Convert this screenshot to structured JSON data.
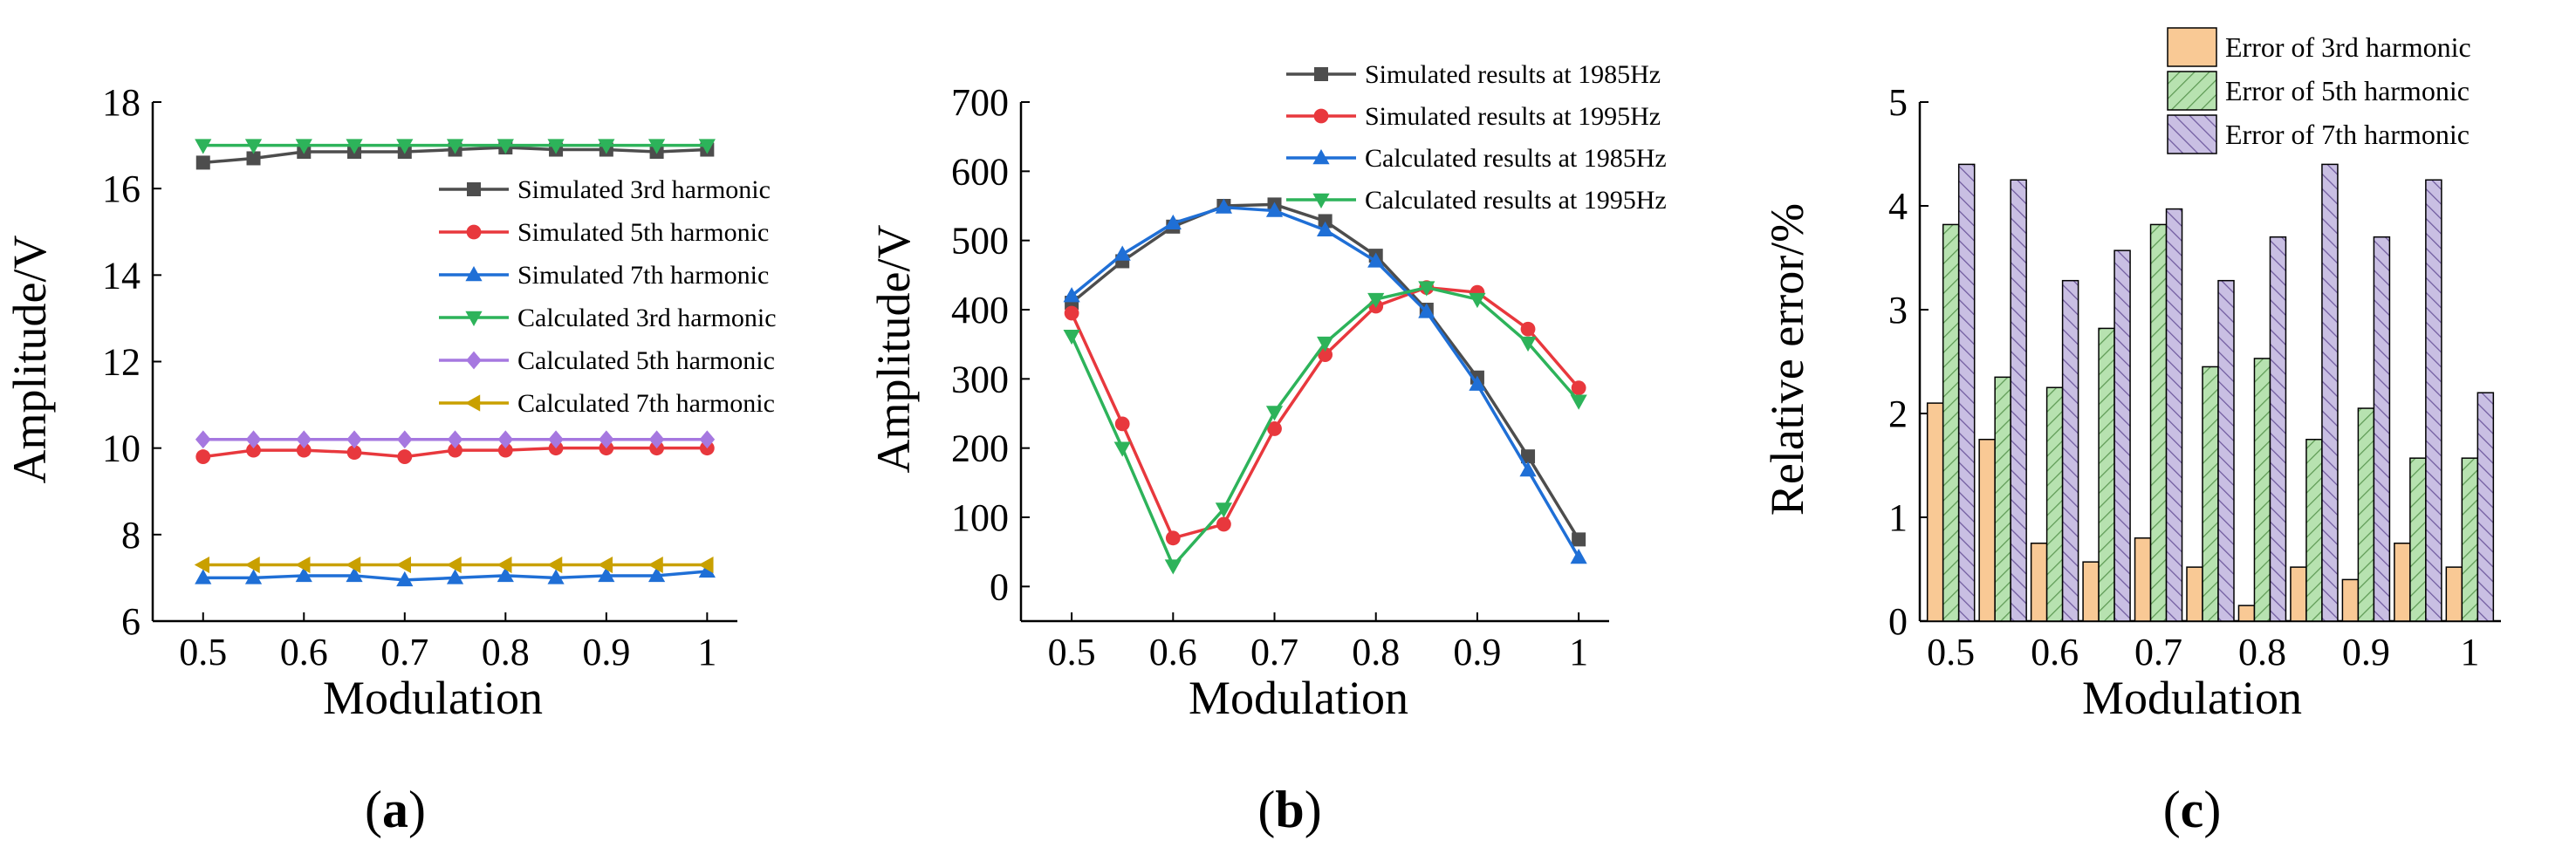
{
  "chart_data": [
    {
      "panel": "a",
      "type": "line",
      "xlabel": "Modulation",
      "ylabel": "Amplitude/V",
      "xlim": [
        0.45,
        1.03
      ],
      "ylim": [
        6,
        18
      ],
      "x_ticks": [
        "0.5",
        "0.6",
        "0.7",
        "0.8",
        "0.9",
        "1"
      ],
      "y_ticks": [
        "6",
        "8",
        "10",
        "12",
        "14",
        "16",
        "18"
      ],
      "x": [
        0.5,
        0.55,
        0.6,
        0.65,
        0.7,
        0.75,
        0.8,
        0.85,
        0.9,
        0.95,
        1.0
      ],
      "legend_position": "right",
      "series": [
        {
          "name": "Simulated 3rd harmonic",
          "color": "#4d4d4d",
          "marker": "square",
          "values": [
            16.6,
            16.7,
            16.85,
            16.85,
            16.85,
            16.9,
            16.95,
            16.9,
            16.9,
            16.85,
            16.9
          ]
        },
        {
          "name": "Simulated 5th harmonic",
          "color": "#e8383d",
          "marker": "circle",
          "values": [
            9.8,
            9.95,
            9.95,
            9.9,
            9.8,
            9.95,
            9.95,
            10.0,
            10.0,
            10.0,
            10.0
          ]
        },
        {
          "name": "Simulated 7th harmonic",
          "color": "#1f6fd6",
          "marker": "triangle-up",
          "values": [
            7.0,
            7.0,
            7.05,
            7.05,
            6.95,
            7.0,
            7.05,
            7.0,
            7.05,
            7.05,
            7.15
          ]
        },
        {
          "name": "Calculated 3rd harmonic",
          "color": "#2db35a",
          "marker": "triangle-down",
          "values": [
            17.0,
            17.0,
            17.0,
            17.0,
            17.0,
            17.0,
            17.0,
            17.0,
            17.0,
            17.0,
            17.0
          ]
        },
        {
          "name": "Calculated 5th harmonic",
          "color": "#a678e0",
          "marker": "diamond",
          "values": [
            10.2,
            10.2,
            10.2,
            10.2,
            10.2,
            10.2,
            10.2,
            10.2,
            10.2,
            10.2,
            10.2
          ]
        },
        {
          "name": "Calculated 7th harmonic",
          "color": "#c9a000",
          "marker": "triangle-left",
          "values": [
            7.3,
            7.3,
            7.3,
            7.3,
            7.3,
            7.3,
            7.3,
            7.3,
            7.3,
            7.3,
            7.3
          ]
        }
      ],
      "label_prefix": "(",
      "label_letter": "a",
      "label_suffix": ")"
    },
    {
      "panel": "b",
      "type": "line",
      "xlabel": "Modulation",
      "ylabel": "Amplitude/V",
      "xlim": [
        0.45,
        1.03
      ],
      "ylim": [
        -50,
        700
      ],
      "x_ticks": [
        "0.5",
        "0.6",
        "0.7",
        "0.8",
        "0.9",
        "1"
      ],
      "y_ticks": [
        "0",
        "100",
        "200",
        "300",
        "400",
        "500",
        "600",
        "700"
      ],
      "x": [
        0.5,
        0.55,
        0.6,
        0.65,
        0.7,
        0.75,
        0.8,
        0.85,
        0.9,
        0.95,
        1.0
      ],
      "legend_position": "top-right",
      "series": [
        {
          "name": "Simulated results at 1985Hz",
          "color": "#4d4d4d",
          "marker": "square",
          "values": [
            410,
            470,
            520,
            550,
            552,
            528,
            478,
            400,
            302,
            188,
            68
          ]
        },
        {
          "name": "Simulated results at 1995Hz",
          "color": "#e8383d",
          "marker": "circle",
          "values": [
            395,
            235,
            70,
            90,
            228,
            335,
            405,
            432,
            425,
            372,
            287
          ]
        },
        {
          "name": "Calculated results at 1985Hz",
          "color": "#1f6fd6",
          "marker": "triangle-up",
          "values": [
            420,
            480,
            525,
            548,
            543,
            515,
            470,
            397,
            292,
            168,
            42
          ]
        },
        {
          "name": "Calculated results at 1995Hz",
          "color": "#2db35a",
          "marker": "triangle-down",
          "values": [
            362,
            200,
            30,
            112,
            252,
            352,
            415,
            432,
            415,
            352,
            268
          ]
        }
      ],
      "label_prefix": "(",
      "label_letter": "b",
      "label_suffix": ")"
    },
    {
      "panel": "c",
      "type": "bar",
      "xlabel": "Modulation",
      "ylabel": "Relative error/%",
      "xlim": [
        0.47,
        1.03
      ],
      "ylim": [
        0,
        5
      ],
      "x_ticks": [
        "0.5",
        "0.6",
        "0.7",
        "0.8",
        "0.9",
        "1"
      ],
      "y_ticks": [
        "0",
        "1",
        "2",
        "3",
        "4",
        "5"
      ],
      "categories": [
        0.5,
        0.55,
        0.6,
        0.65,
        0.7,
        0.75,
        0.8,
        0.85,
        0.9,
        0.95,
        1.0
      ],
      "legend_position": "top-right",
      "series": [
        {
          "name": "Error of 3rd harmonic",
          "color": "#f9c995",
          "hatch": "none",
          "values": [
            2.1,
            1.75,
            0.75,
            0.57,
            0.8,
            0.52,
            0.15,
            0.52,
            0.4,
            0.75,
            0.52
          ]
        },
        {
          "name": "Error of 5th harmonic",
          "color": "#b7e2b0",
          "hatch": "diagonal",
          "values": [
            3.82,
            2.35,
            2.25,
            2.82,
            3.82,
            2.45,
            2.53,
            1.75,
            2.05,
            1.57,
            1.57
          ]
        },
        {
          "name": "Error of 7th harmonic",
          "color": "#c9bfe3",
          "hatch": "diagonal",
          "values": [
            4.4,
            4.25,
            3.28,
            3.57,
            3.97,
            3.28,
            3.7,
            4.4,
            3.7,
            4.25,
            2.2
          ]
        }
      ],
      "label_prefix": "(",
      "label_letter": "c",
      "label_suffix": ")"
    }
  ]
}
